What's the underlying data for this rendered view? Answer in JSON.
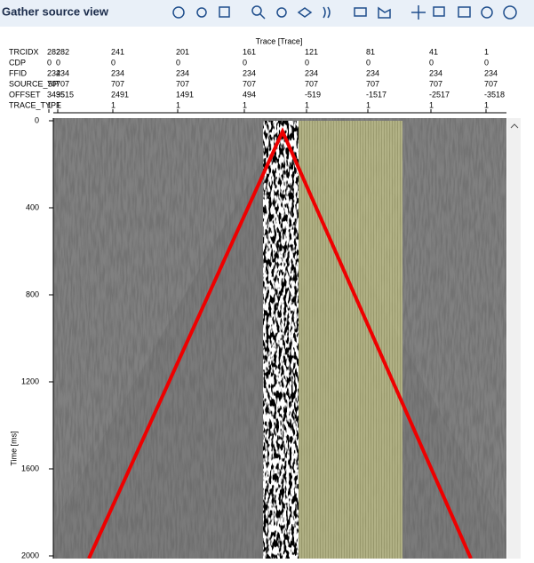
{
  "window": {
    "title": "Gather source view"
  },
  "header": {
    "title": "Trace [Trace]",
    "rows": [
      {
        "label": "TRCIDX",
        "values": [
          "282",
          "282",
          "241",
          "201",
          "161",
          "121",
          "81",
          "41",
          "1"
        ]
      },
      {
        "label": "CDP",
        "values": [
          "0",
          "0",
          "0",
          "0",
          "0",
          "0",
          "0",
          "0",
          "0"
        ]
      },
      {
        "label": "FFID",
        "values": [
          "234",
          "234",
          "234",
          "234",
          "234",
          "234",
          "234",
          "234",
          "234"
        ]
      },
      {
        "label": "SOURCE_SP",
        "values": [
          "707",
          "707",
          "707",
          "707",
          "707",
          "707",
          "707",
          "707",
          "707"
        ]
      },
      {
        "label": "OFFSET",
        "values": [
          "3495",
          "3515",
          "2491",
          "1491",
          "494",
          "-519",
          "-1517",
          "-2517",
          "-3518"
        ]
      },
      {
        "label": "TRACE_TYPE",
        "values": [
          "1",
          "1",
          "1",
          "1",
          "1",
          "1",
          "1",
          "1",
          "1"
        ]
      }
    ]
  },
  "plot": {
    "y_label": "Time [ms]",
    "ylim": [
      0,
      2000
    ],
    "yticks": [
      0,
      400,
      800,
      1200,
      1600,
      2000
    ]
  }
}
